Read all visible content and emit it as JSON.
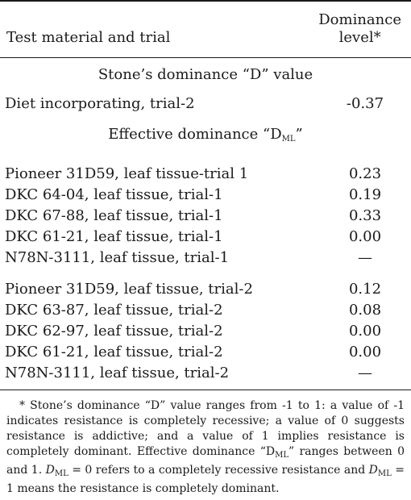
{
  "header": {
    "col1": "Test material and trial",
    "col2_line1": "Dominance",
    "col2_line2": "level*"
  },
  "sections": {
    "stone": "Stone’s dominance “D” value",
    "effective_pre": "Effective dominance “D",
    "effective_sub": "ML",
    "effective_post": "”"
  },
  "rows": [
    {
      "label": "Diet incorporating, trial-2",
      "value": "-0.37"
    },
    {
      "label": "Pioneer 31D59, leaf tissue-trial 1",
      "value": "0.23"
    },
    {
      "label": "DKC 64-04, leaf tissue, trial-1",
      "value": "0.19"
    },
    {
      "label": "DKC 67-88, leaf tissue, trial-1",
      "value": "0.33"
    },
    {
      "label": "DKC 61-21, leaf tissue, trial-1",
      "value": "0.00"
    },
    {
      "label": "N78N-3111, leaf tissue, trial-1",
      "value": "—"
    },
    {
      "label": "Pioneer 31D59, leaf tissue, trial-2",
      "value": "0.12"
    },
    {
      "label": "DKC 63-87, leaf tissue, trial-2",
      "value": "0.08"
    },
    {
      "label": "DKC 62-97, leaf tissue, trial-2",
      "value": "0.00"
    },
    {
      "label": "DKC 61-21, leaf tissue, trial-2",
      "value": "0.00"
    },
    {
      "label": "N78N-3111, leaf tissue, trial-2",
      "value": "—"
    }
  ],
  "footnote": {
    "part1": "* Stone’s dominance “D” value ranges from -1 to 1: a value of -1 indicates resistance is completely recessive; a value of 0 suggests resistance is addictive; and a value of 1 implies resistance is completely dominant. Effective dominance “D",
    "sub": "ML",
    "part2": "” ranges between 0 and 1. ",
    "d": "D",
    "sub2": "ML",
    "part3": " = 0 refers to a completely recessive resistance and ",
    "d2": "D",
    "sub3": "ML",
    "part4": " = 1 means the resistance is completely dominant."
  }
}
